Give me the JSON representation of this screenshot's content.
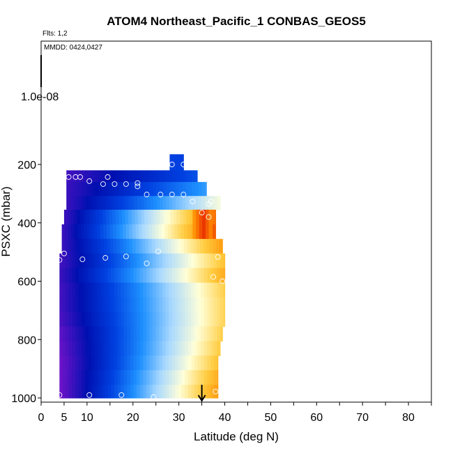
{
  "chart_data": {
    "type": "heatmap",
    "title": "ATOM4 Northeast_Pacific_1 CONBAS_GEOS5",
    "flights_note": "Flts: 1,2",
    "date_note": "MMDD: 0424,0427",
    "xlabel": "Latitude (deg N)",
    "ylabel": "PSXC (mbar)",
    "xlim": [
      0,
      85
    ],
    "ylim": [
      1000,
      0
    ],
    "x_ticks": [
      0,
      5,
      10,
      20,
      30,
      40,
      50,
      60,
      70,
      80
    ],
    "x_minor_ticks": [
      15,
      25,
      35,
      45,
      55,
      65,
      75,
      85
    ],
    "y_ticks": [
      200,
      400,
      600,
      800,
      1000
    ],
    "y_extra_label": "1.0e-08",
    "colorscale": [
      "#6a12c8",
      "#0010b0",
      "#0040e0",
      "#1e90ff",
      "#a8d8ff",
      "#ffffd8",
      "#ffcc40",
      "#ff8c00",
      "#e62000"
    ],
    "bands": [
      {
        "p_top": 165,
        "p_bot": 220,
        "x0": 28.0,
        "x1": 31.0,
        "v0": 0.25,
        "v1": 0.25
      },
      {
        "p_top": 220,
        "p_bot": 260,
        "x0": 5.5,
        "x1": 34.0,
        "v0": 0.05,
        "v1": 0.28
      },
      {
        "p_top": 260,
        "p_bot": 308,
        "x0": 5.5,
        "x1": 36.0,
        "v0": 0.06,
        "v1": 0.4
      },
      {
        "p_top": 308,
        "p_bot": 355,
        "x0": 5.5,
        "x1": 39.0,
        "v0": 0.06,
        "v1": 0.62
      },
      {
        "p_top": 355,
        "p_bot": 405,
        "x0": 5.0,
        "x1": 38.0,
        "v0": 0.06,
        "v1": 0.92
      },
      {
        "p_top": 405,
        "p_bot": 455,
        "x0": 4.5,
        "x1": 38.0,
        "v0": 0.06,
        "v1": 0.95
      },
      {
        "p_top": 455,
        "p_bot": 505,
        "x0": 4.5,
        "x1": 39.5,
        "v0": 0.06,
        "v1": 0.85
      },
      {
        "p_top": 505,
        "p_bot": 555,
        "x0": 4.0,
        "x1": 40.0,
        "v0": 0.05,
        "v1": 0.78
      },
      {
        "p_top": 555,
        "p_bot": 605,
        "x0": 4.0,
        "x1": 40.0,
        "v0": 0.06,
        "v1": 0.82
      },
      {
        "p_top": 605,
        "p_bot": 655,
        "x0": 4.0,
        "x1": 40.0,
        "v0": 0.05,
        "v1": 0.75
      },
      {
        "p_top": 655,
        "p_bot": 705,
        "x0": 4.0,
        "x1": 40.0,
        "v0": 0.05,
        "v1": 0.74
      },
      {
        "p_top": 705,
        "p_bot": 755,
        "x0": 4.0,
        "x1": 40.0,
        "v0": 0.04,
        "v1": 0.74
      },
      {
        "p_top": 755,
        "p_bot": 805,
        "x0": 4.0,
        "x1": 39.5,
        "v0": 0.02,
        "v1": 0.75
      },
      {
        "p_top": 805,
        "p_bot": 855,
        "x0": 4.0,
        "x1": 39.0,
        "v0": 0.01,
        "v1": 0.76
      },
      {
        "p_top": 855,
        "p_bot": 905,
        "x0": 4.0,
        "x1": 38.5,
        "v0": 0.0,
        "v1": 0.78
      },
      {
        "p_top": 905,
        "p_bot": 955,
        "x0": 4.0,
        "x1": 38.5,
        "v0": 0.0,
        "v1": 0.82
      },
      {
        "p_top": 955,
        "p_bot": 1000,
        "x0": 4.0,
        "x1": 38.5,
        "v0": 0.0,
        "v1": 0.85
      }
    ],
    "hotspot": {
      "p_top": 355,
      "p_bot": 455,
      "x0": 33.0,
      "x1": 37.0,
      "v": 0.98
    },
    "points": [
      [
        28.5,
        200
      ],
      [
        31.0,
        200
      ],
      [
        6.0,
        243
      ],
      [
        7.5,
        243
      ],
      [
        8.5,
        243
      ],
      [
        14.5,
        243
      ],
      [
        10.5,
        257
      ],
      [
        13.5,
        267
      ],
      [
        16.0,
        267
      ],
      [
        18.5,
        267
      ],
      [
        21.0,
        264
      ],
      [
        21.0,
        275
      ],
      [
        23.0,
        303
      ],
      [
        26.0,
        303
      ],
      [
        28.5,
        303
      ],
      [
        31.0,
        303
      ],
      [
        33.0,
        327
      ],
      [
        37.0,
        327
      ],
      [
        36.5,
        335
      ],
      [
        35.0,
        365
      ],
      [
        36.5,
        380
      ],
      [
        5.0,
        505
      ],
      [
        25.5,
        498
      ],
      [
        18.5,
        515
      ],
      [
        14.0,
        520
      ],
      [
        9.0,
        525
      ],
      [
        4.0,
        527
      ],
      [
        23.0,
        539
      ],
      [
        38.5,
        517
      ],
      [
        37.5,
        585
      ],
      [
        39.5,
        600
      ],
      [
        4.0,
        990
      ],
      [
        10.5,
        990
      ],
      [
        17.5,
        990
      ],
      [
        24.5,
        997
      ],
      [
        38.0,
        978
      ]
    ],
    "arrow": {
      "x": 35,
      "p_from": 955,
      "p_to": 1000
    },
    "top_marker": {
      "x": 0,
      "from_label": "top",
      "to_value": "1.0e-08"
    }
  }
}
